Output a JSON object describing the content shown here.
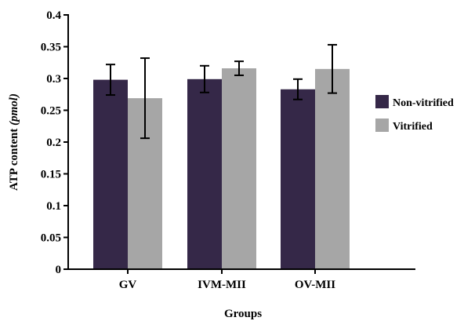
{
  "chart_data": {
    "type": "bar",
    "title": "",
    "xlabel": "Groups",
    "ylabel_main": "ATP content ",
    "ylabel_unit": "(pmol)",
    "ylim": [
      0,
      0.4
    ],
    "yticks": [
      0,
      0.05,
      0.1,
      0.15,
      0.2,
      0.25,
      0.3,
      0.35,
      0.4
    ],
    "ytick_labels": [
      "0",
      "0.05",
      "0.1",
      "0.15",
      "0.2",
      "0.25",
      "0.3",
      "0.35",
      "0.4"
    ],
    "categories": [
      "GV",
      "IVM-MII",
      "OV-MII"
    ],
    "legend_position": "right",
    "series": [
      {
        "name": "Non-vitrified",
        "color": "#352848",
        "values": [
          0.298,
          0.299,
          0.283
        ],
        "errors": [
          0.024,
          0.021,
          0.016
        ]
      },
      {
        "name": "Vitrified",
        "color": "#a6a6a6",
        "values": [
          0.269,
          0.316,
          0.315
        ],
        "errors": [
          0.063,
          0.011,
          0.038
        ]
      }
    ]
  }
}
